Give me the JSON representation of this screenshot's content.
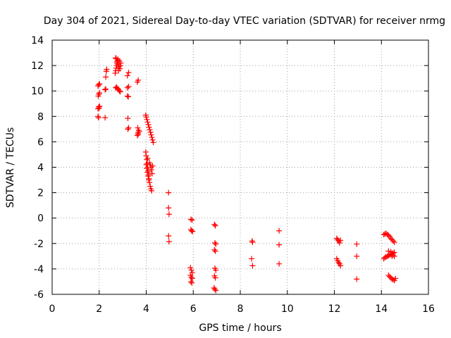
{
  "chart_data": {
    "type": "scatter",
    "title": "Day 304 of 2021, Sidereal Day-to-day VTEC variation (SDTVAR) for receiver nrmg",
    "xlabel": "GPS time / hours",
    "ylabel": "SDTVAR / TECUs",
    "xlim": [
      0,
      16
    ],
    "ylim": [
      -6,
      14
    ],
    "x_ticks": [
      0,
      2,
      4,
      6,
      8,
      10,
      12,
      14,
      16
    ],
    "y_ticks": [
      -6,
      -4,
      -2,
      0,
      2,
      4,
      6,
      8,
      10,
      12,
      14
    ],
    "x_tick_labels": [
      "0",
      "2",
      "4",
      "6",
      "8",
      "10",
      "12",
      "14",
      "16"
    ],
    "y_tick_labels": [
      "-6",
      "-4",
      "-2",
      "0",
      "2",
      "4",
      "6",
      "8",
      "10",
      "12",
      "14"
    ],
    "grid": true,
    "legend": "none",
    "marker": "plus",
    "color": "#ff0000",
    "series": [
      {
        "name": "SDTVAR",
        "points": [
          [
            1.95,
            8.0
          ],
          [
            1.97,
            7.9
          ],
          [
            1.95,
            8.6
          ],
          [
            1.98,
            8.75
          ],
          [
            2.0,
            8.65
          ],
          [
            2.02,
            8.8
          ],
          [
            1.96,
            9.6
          ],
          [
            1.99,
            9.75
          ],
          [
            2.01,
            9.85
          ],
          [
            1.95,
            10.4
          ],
          [
            1.98,
            10.5
          ],
          [
            2.02,
            10.55
          ],
          [
            2.25,
            7.9
          ],
          [
            2.25,
            10.1
          ],
          [
            2.28,
            10.15
          ],
          [
            2.28,
            11.1
          ],
          [
            2.3,
            11.55
          ],
          [
            2.32,
            11.7
          ],
          [
            2.7,
            10.25
          ],
          [
            2.74,
            10.3
          ],
          [
            2.78,
            10.2
          ],
          [
            2.82,
            10.1
          ],
          [
            2.86,
            10.0
          ],
          [
            2.9,
            9.95
          ],
          [
            2.68,
            11.4
          ],
          [
            2.7,
            11.6
          ],
          [
            2.72,
            11.8
          ],
          [
            2.74,
            12.0
          ],
          [
            2.76,
            12.2
          ],
          [
            2.78,
            12.4
          ],
          [
            2.8,
            12.5
          ],
          [
            2.72,
            12.55
          ],
          [
            2.76,
            12.3
          ],
          [
            2.8,
            12.1
          ],
          [
            2.84,
            11.9
          ],
          [
            2.88,
            11.75
          ],
          [
            2.9,
            12.0
          ],
          [
            2.92,
            12.2
          ],
          [
            2.86,
            12.35
          ],
          [
            2.82,
            11.6
          ],
          [
            2.7,
            12.6
          ],
          [
            3.22,
            7.0
          ],
          [
            3.25,
            7.1
          ],
          [
            3.22,
            7.85
          ],
          [
            3.2,
            9.6
          ],
          [
            3.24,
            9.55
          ],
          [
            3.2,
            10.25
          ],
          [
            3.25,
            10.35
          ],
          [
            3.2,
            11.2
          ],
          [
            3.25,
            11.45
          ],
          [
            3.62,
            6.5
          ],
          [
            3.65,
            6.7
          ],
          [
            3.68,
            6.9
          ],
          [
            3.64,
            7.1
          ],
          [
            3.66,
            6.6
          ],
          [
            3.7,
            6.8
          ],
          [
            3.62,
            10.7
          ],
          [
            3.66,
            10.85
          ],
          [
            3.98,
            8.1
          ],
          [
            4.0,
            7.95
          ],
          [
            4.03,
            7.75
          ],
          [
            4.06,
            7.55
          ],
          [
            4.09,
            7.35
          ],
          [
            4.12,
            7.15
          ],
          [
            4.15,
            6.95
          ],
          [
            4.18,
            6.75
          ],
          [
            4.21,
            6.55
          ],
          [
            4.24,
            6.35
          ],
          [
            4.27,
            6.15
          ],
          [
            4.3,
            5.95
          ],
          [
            3.98,
            5.2
          ],
          [
            4.0,
            4.9
          ],
          [
            4.02,
            4.6
          ],
          [
            4.04,
            4.3
          ],
          [
            4.06,
            4.0
          ],
          [
            4.08,
            3.7
          ],
          [
            4.1,
            3.4
          ],
          [
            4.12,
            3.1
          ],
          [
            4.14,
            2.8
          ],
          [
            4.17,
            2.5
          ],
          [
            4.2,
            2.3
          ],
          [
            4.23,
            2.15
          ],
          [
            4.0,
            4.2
          ],
          [
            4.02,
            3.9
          ],
          [
            4.05,
            3.6
          ],
          [
            4.08,
            3.3
          ],
          [
            4.11,
            3.0
          ],
          [
            4.14,
            4.35
          ],
          [
            4.17,
            4.2
          ],
          [
            4.2,
            4.0
          ],
          [
            4.22,
            3.8
          ],
          [
            4.25,
            3.5
          ],
          [
            4.27,
            4.1
          ],
          [
            4.06,
            4.7
          ],
          [
            4.95,
            2.0
          ],
          [
            4.95,
            0.8
          ],
          [
            4.97,
            0.3
          ],
          [
            4.95,
            -1.4
          ],
          [
            4.97,
            -1.85
          ],
          [
            5.9,
            -0.1
          ],
          [
            5.95,
            -0.15
          ],
          [
            5.9,
            -0.9
          ],
          [
            5.93,
            -1.0
          ],
          [
            5.97,
            -1.05
          ],
          [
            5.88,
            -3.9
          ],
          [
            5.92,
            -4.1
          ],
          [
            5.96,
            -4.3
          ],
          [
            5.88,
            -4.5
          ],
          [
            5.92,
            -4.65
          ],
          [
            5.96,
            -4.75
          ],
          [
            5.9,
            -5.0
          ],
          [
            5.94,
            -5.1
          ],
          [
            6.9,
            -0.5
          ],
          [
            6.94,
            -0.6
          ],
          [
            6.92,
            -1.95
          ],
          [
            6.96,
            -2.05
          ],
          [
            6.9,
            -2.5
          ],
          [
            6.94,
            -2.6
          ],
          [
            6.92,
            -3.95
          ],
          [
            6.96,
            -4.1
          ],
          [
            6.9,
            -4.55
          ],
          [
            6.94,
            -4.7
          ],
          [
            6.88,
            -5.5
          ],
          [
            6.92,
            -5.6
          ],
          [
            6.96,
            -5.7
          ],
          [
            8.5,
            -1.8
          ],
          [
            8.52,
            -1.9
          ],
          [
            8.48,
            -3.2
          ],
          [
            8.52,
            -3.75
          ],
          [
            9.65,
            -1.0
          ],
          [
            9.65,
            -2.1
          ],
          [
            9.65,
            -3.6
          ],
          [
            12.1,
            -1.6
          ],
          [
            12.14,
            -1.7
          ],
          [
            12.18,
            -1.8
          ],
          [
            12.22,
            -1.95
          ],
          [
            12.26,
            -1.75
          ],
          [
            12.1,
            -3.2
          ],
          [
            12.14,
            -3.35
          ],
          [
            12.18,
            -3.5
          ],
          [
            12.22,
            -3.6
          ],
          [
            12.26,
            -3.75
          ],
          [
            12.95,
            -2.05
          ],
          [
            12.95,
            -3.0
          ],
          [
            12.95,
            -4.8
          ],
          [
            14.1,
            -1.3
          ],
          [
            14.15,
            -1.25
          ],
          [
            14.2,
            -1.2
          ],
          [
            14.25,
            -1.3
          ],
          [
            14.3,
            -1.35
          ],
          [
            14.35,
            -1.45
          ],
          [
            14.4,
            -1.6
          ],
          [
            14.45,
            -1.7
          ],
          [
            14.5,
            -1.8
          ],
          [
            14.55,
            -1.9
          ],
          [
            14.1,
            -3.2
          ],
          [
            14.15,
            -3.1
          ],
          [
            14.2,
            -3.05
          ],
          [
            14.25,
            -3.0
          ],
          [
            14.3,
            -2.95
          ],
          [
            14.35,
            -2.9
          ],
          [
            14.4,
            -2.85
          ],
          [
            14.45,
            -2.8
          ],
          [
            14.5,
            -2.75
          ],
          [
            14.55,
            -2.7
          ],
          [
            14.3,
            -2.6
          ],
          [
            14.4,
            -2.65
          ],
          [
            14.5,
            -2.9
          ],
          [
            14.55,
            -3.0
          ],
          [
            14.45,
            -3.0
          ],
          [
            14.3,
            -4.5
          ],
          [
            14.35,
            -4.6
          ],
          [
            14.4,
            -4.7
          ],
          [
            14.45,
            -4.8
          ],
          [
            14.5,
            -4.85
          ],
          [
            14.55,
            -4.9
          ],
          [
            14.6,
            -4.75
          ]
        ]
      }
    ]
  }
}
